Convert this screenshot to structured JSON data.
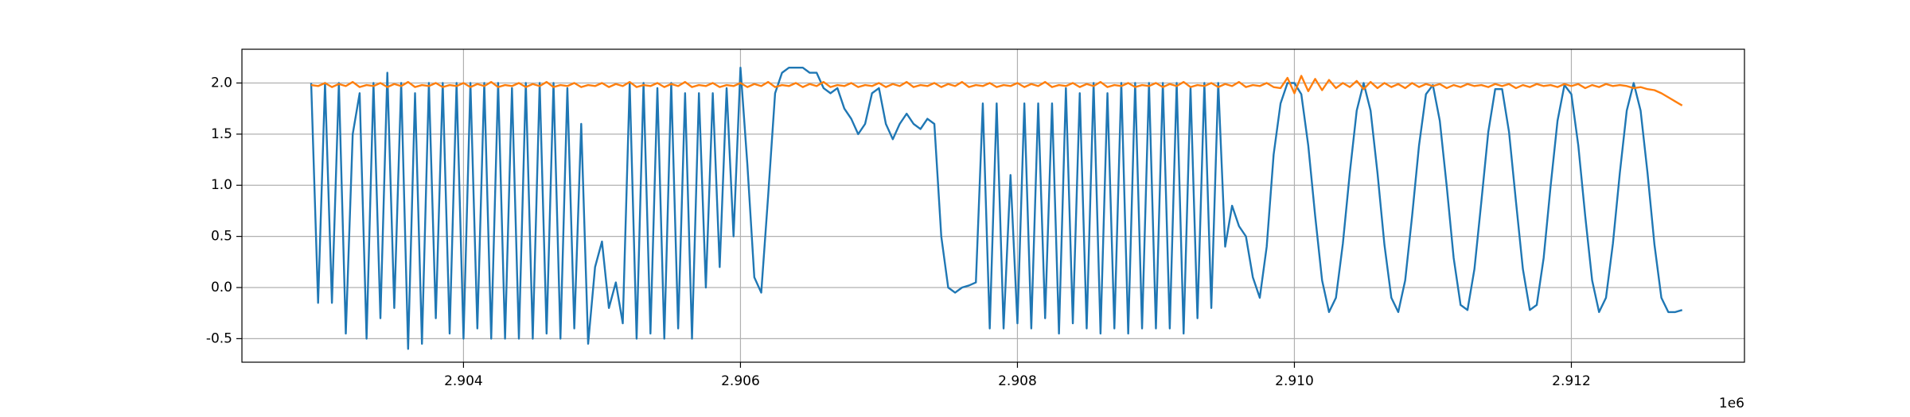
{
  "chart_data": {
    "type": "line",
    "xlim": [
      2902400,
      2913250
    ],
    "ylim": [
      -0.73,
      2.33
    ],
    "xticks": [
      {
        "value": 2904000,
        "label": "2.904"
      },
      {
        "value": 2906000,
        "label": "2.906"
      },
      {
        "value": 2908000,
        "label": "2.908"
      },
      {
        "value": 2910000,
        "label": "2.910"
      },
      {
        "value": 2912000,
        "label": "2.912"
      }
    ],
    "x_offset_label": "1e6",
    "yticks": [
      -0.5,
      {
        "value": 0,
        "label": "0.0"
      },
      0.5,
      {
        "value": 1,
        "label": "1.0"
      },
      1.5,
      {
        "value": 2,
        "label": "2.0"
      }
    ],
    "grid": true,
    "x": [
      2902900,
      2902950,
      2903000,
      2903050,
      2903100,
      2903150,
      2903200,
      2903250,
      2903300,
      2903350,
      2903400,
      2903450,
      2903500,
      2903550,
      2903600,
      2903650,
      2903700,
      2903750,
      2903800,
      2903850,
      2903900,
      2903950,
      2904000,
      2904050,
      2904100,
      2904150,
      2904200,
      2904250,
      2904300,
      2904350,
      2904400,
      2904450,
      2904500,
      2904550,
      2904600,
      2904650,
      2904700,
      2904750,
      2904800,
      2904850,
      2904900,
      2904950,
      2905000,
      2905050,
      2905100,
      2905150,
      2905200,
      2905250,
      2905300,
      2905350,
      2905400,
      2905450,
      2905500,
      2905550,
      2905600,
      2905650,
      2905700,
      2905750,
      2905800,
      2905850,
      2905900,
      2905950,
      2906000,
      2906050,
      2906100,
      2906150,
      2906200,
      2906250,
      2906300,
      2906350,
      2906400,
      2906450,
      2906500,
      2906550,
      2906600,
      2906650,
      2906700,
      2906750,
      2906800,
      2906850,
      2906900,
      2906950,
      2907000,
      2907050,
      2907100,
      2907150,
      2907200,
      2907250,
      2907300,
      2907350,
      2907400,
      2907450,
      2907500,
      2907550,
      2907600,
      2907650,
      2907700,
      2907750,
      2907800,
      2907850,
      2907900,
      2907950,
      2908000,
      2908050,
      2908100,
      2908150,
      2908200,
      2908250,
      2908300,
      2908350,
      2908400,
      2908450,
      2908500,
      2908550,
      2908600,
      2908650,
      2908700,
      2908750,
      2908800,
      2908850,
      2908900,
      2908950,
      2909000,
      2909050,
      2909100,
      2909150,
      2909200,
      2909250,
      2909300,
      2909350,
      2909400,
      2909450,
      2909500,
      2909550,
      2909600,
      2909650,
      2909700,
      2909750,
      2909800,
      2909850,
      2909900,
      2909950,
      2910000,
      2910050,
      2910100,
      2910150,
      2910200,
      2910250,
      2910300,
      2910350,
      2910400,
      2910450,
      2910500,
      2910550,
      2910600,
      2910650,
      2910700,
      2910750,
      2910800,
      2910850,
      2910900,
      2910950,
      2911000,
      2911050,
      2911100,
      2911150,
      2911200,
      2911250,
      2911300,
      2911350,
      2911400,
      2911450,
      2911500,
      2911550,
      2911600,
      2911650,
      2911700,
      2911750,
      2911800,
      2911850,
      2911900,
      2911950,
      2912000,
      2912050,
      2912100,
      2912150,
      2912200,
      2912250,
      2912300,
      2912350,
      2912400,
      2912450,
      2912500,
      2912550,
      2912600,
      2912650,
      2912700,
      2912750,
      2912800
    ],
    "series": [
      {
        "color": "#1f77b4",
        "values": [
          2.0,
          -0.15,
          2.0,
          -0.15,
          2.0,
          -0.45,
          1.5,
          1.9,
          -0.5,
          2.0,
          -0.3,
          2.1,
          -0.2,
          2.0,
          -0.6,
          1.9,
          -0.55,
          2.0,
          -0.3,
          2.0,
          -0.45,
          2.0,
          -0.5,
          2.0,
          -0.4,
          2.0,
          -0.5,
          2.0,
          -0.5,
          1.95,
          -0.5,
          2.0,
          -0.5,
          2.0,
          -0.45,
          2.0,
          -0.5,
          1.95,
          -0.4,
          1.6,
          -0.55,
          0.2,
          0.45,
          -0.2,
          0.05,
          -0.35,
          2.0,
          -0.5,
          2.0,
          -0.45,
          1.95,
          -0.5,
          2.0,
          -0.4,
          1.9,
          -0.5,
          1.9,
          0.0,
          1.9,
          0.2,
          1.95,
          0.5,
          2.15,
          1.2,
          0.1,
          -0.05,
          0.9,
          1.9,
          2.1,
          2.15,
          2.15,
          2.15,
          2.1,
          2.1,
          1.95,
          1.9,
          1.95,
          1.75,
          1.65,
          1.5,
          1.6,
          1.9,
          1.95,
          1.6,
          1.45,
          1.6,
          1.7,
          1.6,
          1.55,
          1.65,
          1.6,
          0.5,
          0.0,
          -0.05,
          0.0,
          0.02,
          0.05,
          1.8,
          -0.4,
          1.8,
          -0.4,
          1.1,
          -0.35,
          1.8,
          -0.4,
          1.8,
          -0.3,
          1.8,
          -0.45,
          1.95,
          -0.35,
          1.9,
          -0.4,
          2.0,
          -0.45,
          1.9,
          -0.4,
          2.0,
          -0.45,
          2.0,
          -0.4,
          2.0,
          -0.4,
          2.0,
          -0.4,
          2.0,
          -0.45,
          1.95,
          -0.3,
          2.0,
          -0.2,
          2.0,
          0.4,
          0.8,
          0.6,
          0.5,
          0.1,
          -0.1,
          0.4,
          1.3,
          1.8,
          2.0,
          2.0,
          1.89,
          1.39,
          0.7,
          0.07,
          -0.24,
          -0.1,
          0.43,
          1.12,
          1.73,
          2.0,
          1.73,
          1.12,
          0.42,
          -0.1,
          -0.24,
          0.07,
          0.7,
          1.39,
          1.89,
          1.98,
          1.63,
          0.99,
          0.29,
          -0.17,
          -0.22,
          0.18,
          0.84,
          1.52,
          1.94,
          1.94,
          1.52,
          0.84,
          0.18,
          -0.22,
          -0.17,
          0.29,
          0.99,
          1.63,
          1.98,
          1.89,
          1.39,
          0.7,
          0.07,
          -0.24,
          -0.1,
          0.43,
          1.12,
          1.73,
          2.0,
          1.73,
          1.12,
          0.42,
          -0.1,
          -0.24,
          -0.24,
          -0.22
        ]
      },
      {
        "color": "#ff7f0e",
        "values": [
          1.98,
          1.97,
          2.0,
          1.96,
          1.99,
          1.97,
          2.01,
          1.96,
          1.98,
          1.97,
          2.0,
          1.96,
          1.99,
          1.97,
          2.01,
          1.96,
          1.98,
          1.97,
          2.0,
          1.96,
          1.98,
          1.97,
          2.0,
          1.96,
          1.99,
          1.97,
          2.01,
          1.96,
          1.98,
          1.97,
          2.0,
          1.96,
          1.99,
          1.97,
          2.01,
          1.96,
          1.98,
          1.97,
          2.0,
          1.96,
          1.98,
          1.97,
          2.0,
          1.96,
          1.99,
          1.97,
          2.01,
          1.96,
          1.98,
          1.97,
          2.0,
          1.96,
          1.99,
          1.97,
          2.01,
          1.96,
          1.98,
          1.97,
          2.0,
          1.96,
          1.98,
          1.97,
          2.0,
          1.96,
          1.99,
          1.97,
          2.01,
          1.96,
          1.98,
          1.97,
          2.0,
          1.96,
          1.99,
          1.97,
          2.01,
          1.96,
          1.98,
          1.97,
          2.0,
          1.96,
          1.98,
          1.97,
          2.0,
          1.96,
          1.99,
          1.97,
          2.01,
          1.96,
          1.98,
          1.97,
          2.0,
          1.96,
          1.99,
          1.97,
          2.01,
          1.96,
          1.98,
          1.97,
          2.0,
          1.96,
          1.98,
          1.97,
          2.0,
          1.96,
          1.99,
          1.97,
          2.01,
          1.96,
          1.98,
          1.97,
          2.0,
          1.96,
          1.99,
          1.97,
          2.01,
          1.96,
          1.98,
          1.97,
          2.0,
          1.96,
          1.98,
          1.97,
          2.0,
          1.96,
          1.99,
          1.97,
          2.01,
          1.96,
          1.98,
          1.97,
          2.0,
          1.96,
          1.99,
          1.97,
          2.01,
          1.96,
          1.98,
          1.97,
          2.0,
          1.96,
          1.95,
          2.05,
          1.9,
          2.07,
          1.92,
          2.04,
          1.93,
          2.03,
          1.95,
          2.0,
          1.96,
          2.02,
          1.94,
          2.01,
          1.95,
          2.0,
          1.96,
          1.99,
          1.95,
          2.0,
          1.96,
          1.99,
          1.97,
          1.99,
          1.95,
          1.98,
          1.96,
          1.99,
          1.97,
          1.98,
          1.96,
          1.99,
          1.97,
          1.99,
          1.95,
          1.98,
          1.96,
          1.99,
          1.97,
          1.98,
          1.96,
          1.99,
          1.97,
          1.99,
          1.95,
          1.98,
          1.96,
          1.99,
          1.97,
          1.98,
          1.97,
          1.95,
          1.96,
          1.94,
          1.93,
          1.9,
          1.86,
          1.82,
          1.78
        ]
      }
    ]
  }
}
